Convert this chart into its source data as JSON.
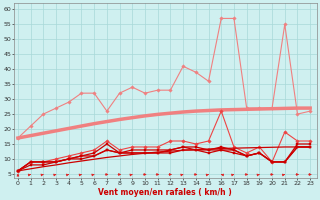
{
  "xlabel": "Vent moyen/en rafales ( km/h )",
  "bg_color": "#cff0f0",
  "grid_color": "#a8d8d8",
  "x_ticks": [
    0,
    1,
    2,
    3,
    4,
    5,
    6,
    7,
    8,
    9,
    10,
    11,
    12,
    13,
    14,
    15,
    16,
    17,
    18,
    19,
    20,
    21,
    22,
    23
  ],
  "yticks": [
    5,
    10,
    15,
    20,
    25,
    30,
    35,
    40,
    45,
    50,
    55,
    60
  ],
  "ylim": [
    3.5,
    62
  ],
  "xlim": [
    -0.3,
    23.5
  ],
  "series": [
    {
      "label": "rafales_light",
      "color": "#f08080",
      "lw": 0.8,
      "marker": "D",
      "ms": 1.8,
      "y": [
        17,
        21,
        25,
        27,
        29,
        32,
        32,
        26,
        32,
        34,
        32,
        33,
        33,
        41,
        39,
        36,
        57,
        57,
        27,
        27,
        27,
        55,
        25,
        26
      ]
    },
    {
      "label": "trend_light",
      "color": "#f08080",
      "lw": 2.5,
      "marker": null,
      "ms": 0,
      "y": [
        17,
        17.8,
        18.6,
        19.4,
        20.2,
        21.0,
        21.8,
        22.5,
        23.2,
        23.8,
        24.4,
        24.9,
        25.3,
        25.7,
        26.0,
        26.2,
        26.4,
        26.5,
        26.6,
        26.7,
        26.8,
        26.9,
        27.0,
        27.0
      ]
    },
    {
      "label": "rafales_medium",
      "color": "#ee4444",
      "lw": 0.8,
      "marker": "D",
      "ms": 1.8,
      "y": [
        6,
        9,
        9,
        10,
        11,
        12,
        13,
        16,
        13,
        14,
        14,
        14,
        16,
        16,
        15,
        16,
        26,
        14,
        12,
        14,
        9,
        19,
        16,
        16
      ]
    },
    {
      "label": "vent_mean1",
      "color": "#cc0000",
      "lw": 0.9,
      "marker": "s",
      "ms": 1.8,
      "y": [
        6,
        9,
        9,
        9,
        10,
        11,
        12,
        15,
        12,
        13,
        13,
        13,
        13,
        14,
        14,
        13,
        14,
        13,
        11,
        12,
        9,
        9,
        15,
        15
      ]
    },
    {
      "label": "vent_mean2",
      "color": "#cc0000",
      "lw": 0.9,
      "marker": "s",
      "ms": 1.8,
      "y": [
        6,
        9,
        9,
        9,
        10,
        11,
        11,
        13,
        12,
        12,
        12,
        12,
        13,
        14,
        13,
        13,
        13,
        12,
        11,
        12,
        9,
        9,
        14,
        14
      ]
    },
    {
      "label": "vent_mean3",
      "color": "#cc0000",
      "lw": 0.9,
      "marker": "s",
      "ms": 1.8,
      "y": [
        6,
        8,
        8,
        9,
        10,
        10,
        11,
        13,
        12,
        12,
        12,
        12,
        12,
        13,
        13,
        12,
        13,
        13,
        11,
        12,
        9,
        9,
        14,
        14
      ]
    },
    {
      "label": "vent_trend_red",
      "color": "#cc0000",
      "lw": 0.9,
      "marker": null,
      "ms": 0,
      "y": [
        6,
        6.7,
        7.4,
        8.0,
        8.7,
        9.3,
        9.9,
        10.5,
        11.0,
        11.5,
        11.9,
        12.3,
        12.6,
        12.9,
        13.1,
        13.3,
        13.5,
        13.6,
        13.7,
        13.8,
        13.9,
        14.0,
        14.0,
        14.0
      ]
    }
  ],
  "wind_arrows": {
    "color": "#dd2222",
    "angles": [
      90,
      45,
      45,
      45,
      45,
      45,
      45,
      0,
      0,
      45,
      0,
      0,
      0,
      45,
      0,
      45,
      135,
      45,
      0,
      45,
      0,
      45,
      0,
      0
    ]
  }
}
